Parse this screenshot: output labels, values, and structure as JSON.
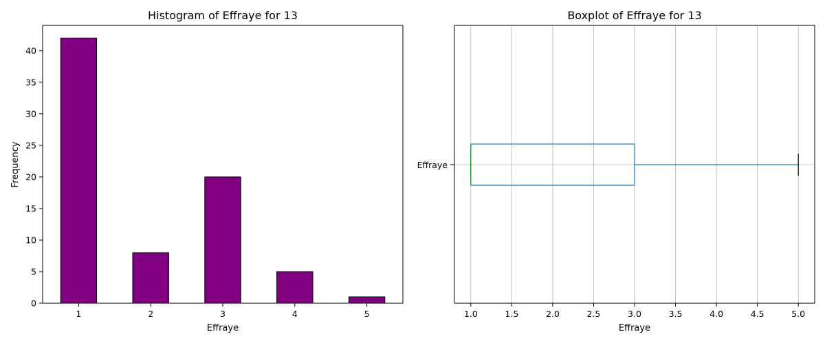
{
  "chart_data": [
    {
      "type": "bar",
      "title": "Histogram of Effraye for 13",
      "xlabel": "Effraye",
      "ylabel": "Frequency",
      "categories": [
        "1",
        "2",
        "3",
        "4",
        "5"
      ],
      "values": [
        42,
        8,
        20,
        5,
        1
      ],
      "ylim": [
        0,
        44
      ],
      "yticks": [
        0,
        5,
        10,
        15,
        20,
        25,
        30,
        35,
        40
      ],
      "bar_color": "#800080",
      "edge_color": "#000000",
      "grid": false
    },
    {
      "type": "box",
      "title": "Boxplot of Effraye for 13",
      "xlabel": "Effraye",
      "category_label": "Effraye",
      "orientation": "horizontal",
      "min": 1.0,
      "q1": 1.0,
      "median": 1.0,
      "q3": 3.0,
      "max": 5.0,
      "xlim": [
        0.8,
        5.2
      ],
      "xticks": [
        "1.0",
        "1.5",
        "2.0",
        "2.5",
        "3.0",
        "3.5",
        "4.0",
        "4.5",
        "5.0"
      ],
      "box_color": "#1f77b4",
      "median_color": "#2ca02c",
      "cap_color": "#000000",
      "grid": true
    }
  ]
}
